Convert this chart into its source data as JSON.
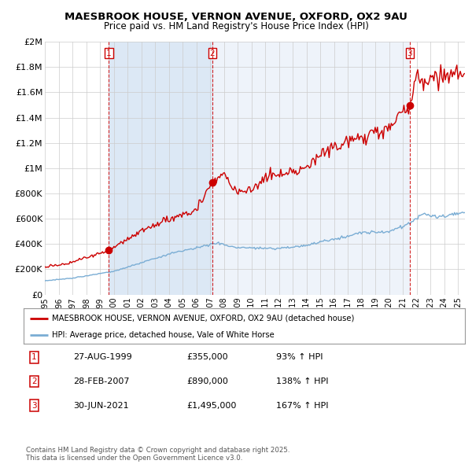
{
  "title": "MAESBROOK HOUSE, VERNON AVENUE, OXFORD, OX2 9AU",
  "subtitle": "Price paid vs. HM Land Registry's House Price Index (HPI)",
  "legend_house": "MAESBROOK HOUSE, VERNON AVENUE, OXFORD, OX2 9AU (detached house)",
  "legend_hpi": "HPI: Average price, detached house, Vale of White Horse",
  "footer": "Contains HM Land Registry data © Crown copyright and database right 2025.\nThis data is licensed under the Open Government Licence v3.0.",
  "transactions": [
    {
      "n": 1,
      "date": "27-AUG-1999",
      "price": "£355,000",
      "pct": "93% ↑ HPI"
    },
    {
      "n": 2,
      "date": "28-FEB-2007",
      "price": "£890,000",
      "pct": "138% ↑ HPI"
    },
    {
      "n": 3,
      "date": "30-JUN-2021",
      "price": "£1,495,000",
      "pct": "167% ↑ HPI"
    }
  ],
  "vline_dates": [
    1999.653,
    2007.161,
    2021.495
  ],
  "sale_prices": [
    355000,
    890000,
    1495000
  ],
  "vline_color": "#cc0000",
  "house_color": "#cc0000",
  "hpi_color": "#7aadd4",
  "shade_color": "#dce8f5",
  "background_color": "#ffffff",
  "grid_color": "#cccccc",
  "ylim": [
    0,
    2000000
  ],
  "xlim_start": 1995.0,
  "xlim_end": 2025.5,
  "title_fontsize": 9.5,
  "subtitle_fontsize": 8.5
}
